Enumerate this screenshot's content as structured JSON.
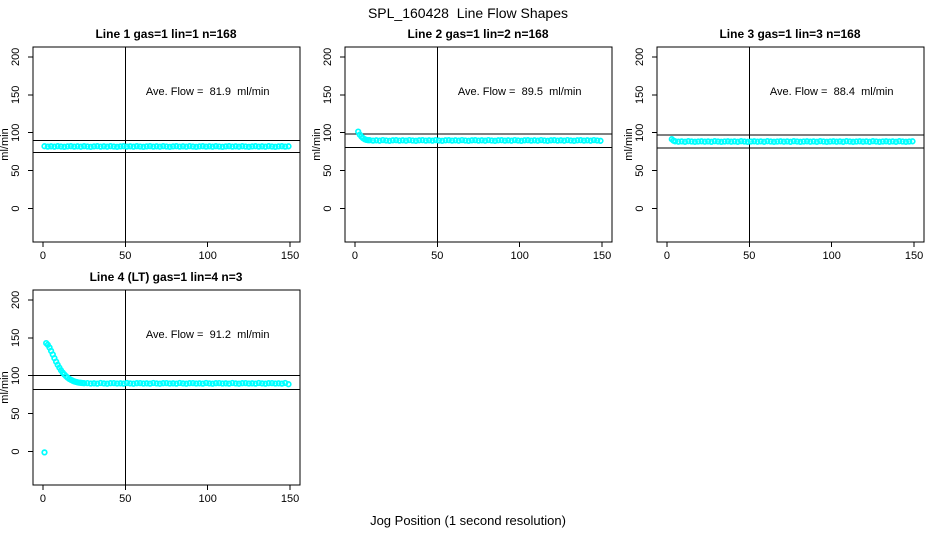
{
  "chart_data": {
    "type": "scatter",
    "title": "SPL_160428  Line Flow Shapes",
    "xlabel": "Jog Position (1 second resolution)",
    "ylabel": "ml/min",
    "xlim": [
      -6,
      156
    ],
    "ylim": [
      -44,
      213
    ],
    "xticks": [
      0,
      50,
      100,
      150
    ],
    "yticks": [
      0,
      50,
      100,
      150,
      200
    ],
    "vline_x": 50,
    "grid": false,
    "legend": "none",
    "marker": "open-circle",
    "marker_color": "#00FFFF",
    "line_color": "#000000",
    "annotation_anchor": {
      "x": 100,
      "y": 150
    },
    "panels": [
      {
        "title": "Line 1 gas=1 lin=1 n=168",
        "annotation": "Ave. Flow =  81.9  ml/min",
        "ave_flow": 81.9,
        "ref_lines": [
          90.1,
          73.7
        ],
        "points": [],
        "plateau": {
          "x_start": 1,
          "x_step": 2,
          "y": [
            82.2,
            81.7,
            82.1,
            81.6,
            82.3,
            81.9,
            81.5,
            82.0,
            82.2,
            81.7,
            82.1,
            81.6,
            82.3,
            81.9,
            81.5,
            82.0,
            82.2,
            81.7,
            82.1,
            81.6,
            82.3,
            81.9,
            81.5,
            82.0,
            82.2,
            81.7,
            82.1,
            81.6,
            82.3,
            81.9,
            81.5,
            82.0,
            82.2,
            81.7,
            82.1,
            81.6,
            82.3,
            81.9,
            81.5,
            82.0,
            82.2,
            81.7,
            82.1,
            81.6,
            82.3,
            81.9,
            81.5,
            82.0,
            82.2,
            81.7,
            82.1,
            81.6,
            82.3,
            81.9,
            81.5,
            82.0,
            82.2,
            81.7,
            82.1,
            81.6,
            82.3,
            81.9,
            81.5,
            82.0,
            82.2,
            81.7,
            82.1,
            81.6,
            82.3,
            81.9,
            81.5,
            82.0,
            82.2,
            81.7,
            82.1
          ]
        }
      },
      {
        "title": "Line 2 gas=1 lin=2 n=168",
        "annotation": "Ave. Flow =  89.5  ml/min",
        "ave_flow": 89.5,
        "ref_lines": [
          98.5,
          80.6
        ],
        "points": [
          [
            2,
            101.5
          ],
          [
            3,
            97.5
          ],
          [
            4,
            94.8
          ],
          [
            5,
            92.8
          ],
          [
            6,
            91.4
          ],
          [
            7,
            90.6
          ],
          [
            8,
            90.2
          ]
        ],
        "plateau": {
          "x_start": 9,
          "x_step": 2,
          "y": [
            90.2,
            89.7,
            90.0,
            89.5,
            90.3,
            89.8,
            89.4,
            90.1,
            90.2,
            89.7,
            90.0,
            89.5,
            90.3,
            89.8,
            89.4,
            90.1,
            90.2,
            89.7,
            90.0,
            89.5,
            90.3,
            89.8,
            89.4,
            90.1,
            90.2,
            89.7,
            90.0,
            89.5,
            90.3,
            89.8,
            89.4,
            90.1,
            90.2,
            89.7,
            90.0,
            89.5,
            90.3,
            89.8,
            89.4,
            90.1,
            90.2,
            89.7,
            90.0,
            89.5,
            90.3,
            89.8,
            89.4,
            90.1,
            90.2,
            89.7,
            90.0,
            89.5,
            90.3,
            89.8,
            89.4,
            90.1,
            90.2,
            89.7,
            90.0,
            89.5,
            90.3,
            89.8,
            89.4,
            90.1,
            90.2,
            89.7,
            90.0,
            89.5,
            90.3,
            89.8,
            89.4
          ]
        }
      },
      {
        "title": "Line 3 gas=1 lin=3 n=168",
        "annotation": "Ave. Flow =  88.4  ml/min",
        "ave_flow": 88.4,
        "ref_lines": [
          97.2,
          79.6
        ],
        "points": [
          [
            3,
            91.5
          ],
          [
            4,
            89.6
          ]
        ],
        "plateau": {
          "x_start": 5,
          "x_step": 2,
          "y": [
            88.7,
            88.2,
            88.6,
            88.1,
            88.8,
            88.4,
            88.0,
            88.5,
            88.7,
            88.2,
            88.6,
            88.1,
            88.8,
            88.4,
            88.0,
            88.5,
            88.7,
            88.2,
            88.6,
            88.1,
            88.8,
            88.4,
            88.0,
            88.5,
            88.7,
            88.2,
            88.6,
            88.1,
            88.8,
            88.4,
            88.0,
            88.5,
            88.7,
            88.2,
            88.6,
            88.1,
            88.8,
            88.4,
            88.0,
            88.5,
            88.7,
            88.2,
            88.6,
            88.1,
            88.8,
            88.4,
            88.0,
            88.5,
            88.7,
            88.2,
            88.6,
            88.1,
            88.8,
            88.4,
            88.0,
            88.5,
            88.7,
            88.2,
            88.6,
            88.1,
            88.8,
            88.4,
            88.0,
            88.5,
            88.7,
            88.2,
            88.6,
            88.1,
            88.8,
            88.4,
            88.0,
            88.5,
            88.7
          ]
        }
      },
      {
        "title": "Line 4 (LT) gas=1 lin=4 n=3",
        "annotation": "Ave. Flow =  91.2  ml/min",
        "ave_flow": 91.2,
        "ref_lines": [
          100.3,
          82.1
        ],
        "points": [
          [
            1,
            -1
          ],
          [
            2,
            143
          ],
          [
            3,
            140.8
          ],
          [
            4,
            137.2
          ],
          [
            5,
            132.8
          ],
          [
            6,
            128.0
          ],
          [
            7,
            123.2
          ],
          [
            8,
            118.6
          ],
          [
            9,
            114.4
          ],
          [
            10,
            110.6
          ],
          [
            11,
            107.2
          ],
          [
            12,
            104.2
          ],
          [
            13,
            101.6
          ],
          [
            14,
            99.4
          ],
          [
            15,
            97.5
          ],
          [
            16,
            95.9
          ],
          [
            17,
            94.6
          ],
          [
            18,
            93.5
          ],
          [
            19,
            92.6
          ],
          [
            20,
            91.9
          ],
          [
            21,
            91.4
          ],
          [
            22,
            91.0
          ],
          [
            23,
            90.7
          ],
          [
            24,
            90.4
          ],
          [
            25,
            90.2
          ]
        ],
        "plateau": {
          "x_start": 27,
          "x_step": 2,
          "y": [
            90.3,
            89.8,
            90.1,
            89.6,
            90.4,
            89.9,
            89.5,
            90.2,
            90.3,
            89.8,
            90.1,
            89.6,
            90.4,
            89.9,
            89.5,
            90.2,
            90.3,
            89.8,
            90.1,
            89.6,
            90.4,
            89.9,
            89.5,
            90.2,
            90.3,
            89.8,
            90.1,
            89.6,
            90.4,
            89.9,
            89.5,
            90.2,
            90.3,
            89.8,
            90.1,
            89.6,
            90.4,
            89.9,
            89.5,
            90.2,
            90.3,
            89.8,
            90.1,
            89.6,
            90.4,
            89.9,
            89.5,
            90.2,
            90.3,
            89.8,
            90.1,
            89.6,
            90.4,
            89.9,
            89.5,
            90.2,
            90.3,
            89.8,
            90.1,
            89.6,
            90.4,
            88.9
          ]
        }
      }
    ]
  }
}
